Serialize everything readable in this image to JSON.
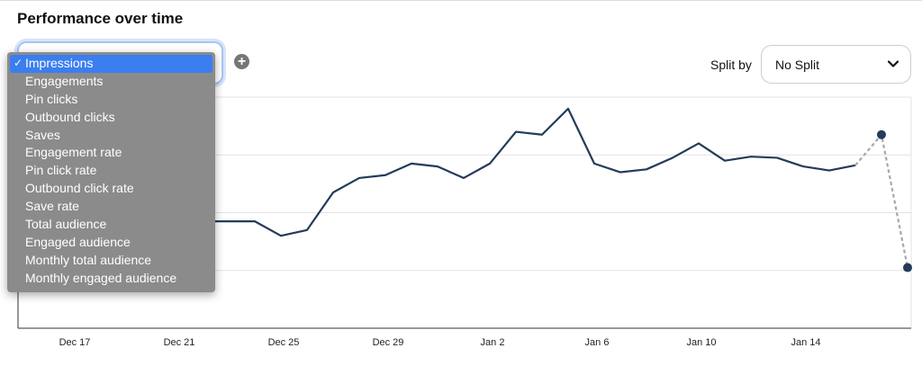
{
  "page": {
    "title": "Performance over time"
  },
  "metric_select": {
    "selected": "Impressions",
    "check_glyph": "✓",
    "options": [
      "Impressions",
      "Engagements",
      "Pin clicks",
      "Outbound clicks",
      "Saves",
      "Engagement rate",
      "Pin click rate",
      "Outbound click rate",
      "Save rate",
      "Total audience",
      "Engaged audience",
      "Monthly total audience",
      "Monthly engaged audience"
    ]
  },
  "add_metric": {
    "glyph": "+",
    "icon": "plus-circle-icon"
  },
  "split": {
    "label": "Split by",
    "value": "No Split",
    "icon": "chevron-down-icon"
  },
  "colors": {
    "line": "#243b5a",
    "projection": "#a8a8a8",
    "grid": "#e3e3e3",
    "axis": "#333333",
    "focus": "#a9c4ef",
    "dropdown_bg": "#8b8b8b",
    "dropdown_selected": "#3a7ef0"
  },
  "chart_data": {
    "type": "line",
    "title": "",
    "xlabel": "",
    "ylabel": "",
    "y_axis_labels_visible": false,
    "grid": "horizontal",
    "x_tick_labels": [
      "Dec 17",
      "Dec 21",
      "Dec 25",
      "Dec 29",
      "Jan 2",
      "Jan 6",
      "Jan 10",
      "Jan 14"
    ],
    "x_start_label": "Dec 17",
    "ylim": [
      0,
      4
    ],
    "series": [
      {
        "style": "solid",
        "values": [
          1.85,
          1.85,
          1.85,
          1.85,
          1.85,
          1.85,
          1.85,
          1.85,
          1.6,
          1.7,
          2.35,
          2.6,
          2.65,
          2.85,
          2.8,
          2.6,
          2.85,
          3.4,
          3.35,
          3.8,
          2.85,
          2.7,
          2.75,
          2.95,
          3.2,
          2.9,
          2.97,
          2.95,
          2.8,
          2.73,
          2.82
        ]
      },
      {
        "style": "dashed",
        "start_index": 30,
        "values": [
          2.82,
          3.35,
          1.05
        ]
      }
    ]
  }
}
